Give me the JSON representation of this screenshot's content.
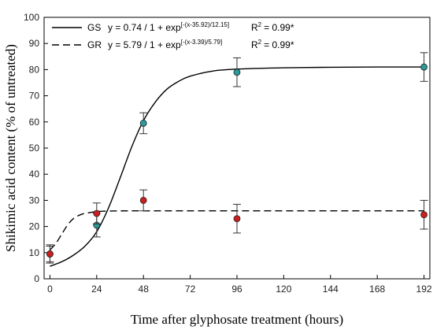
{
  "chart_data": {
    "type": "scatter",
    "xlabel": "Time after glyphosate treatment (hours)",
    "ylabel": "Shikimic acid content (% of untreated)",
    "x_ticks": [
      "0",
      "24",
      "48",
      "72",
      "96",
      "120",
      "144",
      "168",
      "192"
    ],
    "x_tick_values": [
      0,
      24,
      48,
      72,
      96,
      120,
      144,
      168,
      192
    ],
    "y_ticks": [
      "0",
      "10",
      "20",
      "30",
      "40",
      "50",
      "60",
      "70",
      "80",
      "90",
      "100"
    ],
    "y_tick_values": [
      0,
      10,
      20,
      30,
      40,
      50,
      60,
      70,
      80,
      90,
      100
    ],
    "xlim": [
      -3,
      195
    ],
    "ylim": [
      0,
      100
    ],
    "legend_position": "top-left",
    "series": [
      {
        "name": "GS",
        "marker_color": "#2a9a9a",
        "line_style": "solid",
        "equation_prefix": "y = 0.74 / 1 + exp",
        "equation_exponent": "[-(x-35.92)/12.15]",
        "r2_label": "R",
        "r2_value": "= 0.99*",
        "points": [
          {
            "x": 0,
            "y": 9.5,
            "err": 3.5
          },
          {
            "x": 24,
            "y": 20.5,
            "err": 4.5
          },
          {
            "x": 48,
            "y": 59.5,
            "err": 4.0
          },
          {
            "x": 96,
            "y": 79.0,
            "err": 5.5
          },
          {
            "x": 192,
            "y": 81.0,
            "err": 5.5
          }
        ],
        "curve": [
          [
            0,
            4.8
          ],
          [
            6,
            6.5
          ],
          [
            12,
            9.0
          ],
          [
            18,
            12.5
          ],
          [
            24,
            18.0
          ],
          [
            30,
            27.0
          ],
          [
            36,
            38.5
          ],
          [
            42,
            50.5
          ],
          [
            48,
            60.5
          ],
          [
            54,
            67.5
          ],
          [
            60,
            72.5
          ],
          [
            66,
            75.5
          ],
          [
            72,
            77.5
          ],
          [
            84,
            79.5
          ],
          [
            96,
            80.2
          ],
          [
            120,
            80.7
          ],
          [
            144,
            80.9
          ],
          [
            168,
            81.0
          ],
          [
            192,
            81.0
          ]
        ]
      },
      {
        "name": "GR",
        "marker_color": "#cc1f1f",
        "line_style": "dashed",
        "equation_prefix": "y = 5.79 / 1 + exp",
        "equation_exponent": "[-(x-3.39)/5.79]",
        "r2_label": "R",
        "r2_value": "= 0.99*",
        "points": [
          {
            "x": 0,
            "y": 9.5,
            "err": 3.0
          },
          {
            "x": 24,
            "y": 25.0,
            "err": 4.0
          },
          {
            "x": 48,
            "y": 30.0,
            "err": 4.0
          },
          {
            "x": 96,
            "y": 23.0,
            "err": 5.5
          },
          {
            "x": 192,
            "y": 24.5,
            "err": 5.5
          }
        ],
        "curve": [
          [
            0,
            11.0
          ],
          [
            3,
            13.5
          ],
          [
            6,
            17.0
          ],
          [
            9,
            20.5
          ],
          [
            12,
            23.0
          ],
          [
            16,
            24.6
          ],
          [
            20,
            25.3
          ],
          [
            24,
            25.7
          ],
          [
            30,
            25.9
          ],
          [
            40,
            26.0
          ],
          [
            60,
            26.0
          ],
          [
            96,
            26.0
          ],
          [
            144,
            26.0
          ],
          [
            192,
            26.0
          ]
        ]
      }
    ]
  }
}
